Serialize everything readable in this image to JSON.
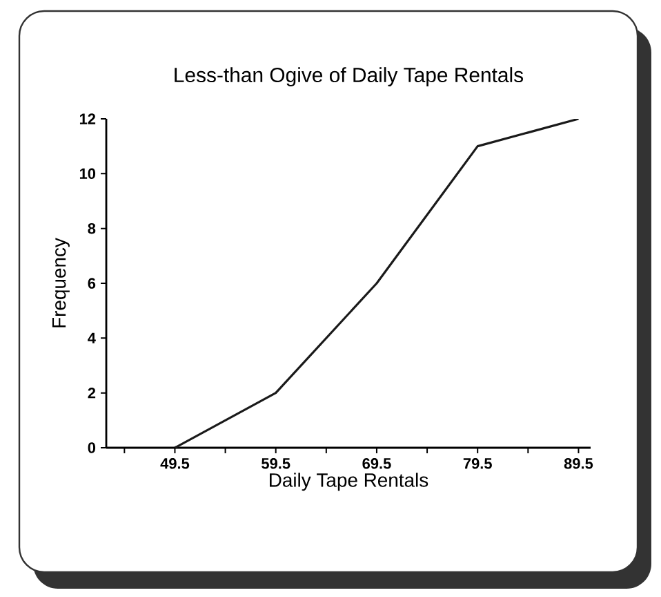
{
  "chart_data": {
    "type": "line",
    "title": "Less-than Ogive of Daily Tape Rentals",
    "xlabel": "Daily Tape Rentals",
    "ylabel": "Frequency",
    "x": [
      49.5,
      59.5,
      69.5,
      79.5,
      89.5
    ],
    "series": [
      {
        "color": "#1a1a1a",
        "values": [
          0,
          2,
          6,
          11,
          12
        ]
      }
    ],
    "xlim": [
      42.7,
      90.7
    ],
    "xticks": [
      {
        "value": 44.5,
        "label": null
      },
      49.5,
      {
        "value": 54.5,
        "label": null
      },
      59.5,
      {
        "value": 64.5,
        "label": null
      },
      69.5,
      {
        "value": 74.5,
        "label": null
      },
      79.5,
      {
        "value": 84.5,
        "label": null
      },
      89.5
    ],
    "ylim": [
      0,
      12
    ],
    "yticks": [
      0,
      2,
      4,
      6,
      8,
      10,
      12
    ],
    "grid": false,
    "marker": "none",
    "line_style": "solid"
  }
}
